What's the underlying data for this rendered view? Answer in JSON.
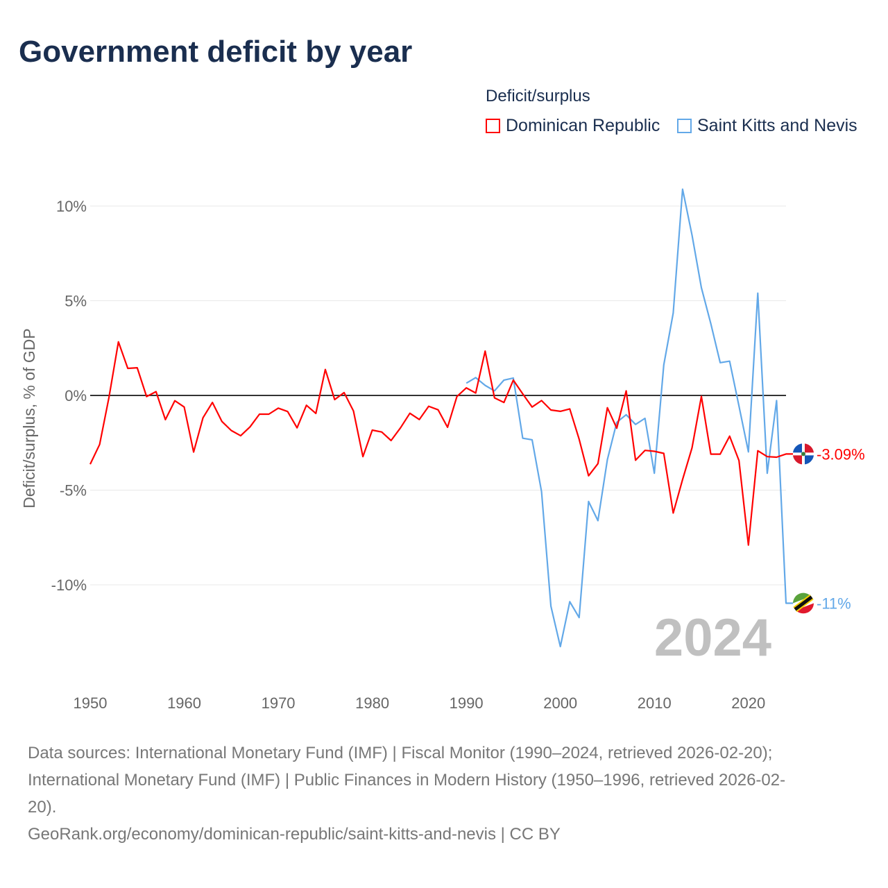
{
  "title": "Government deficit by year",
  "legend": {
    "title": "Deficit/surplus",
    "items": [
      {
        "label": "Dominican Republic",
        "color": "#ff0000"
      },
      {
        "label": "Saint Kitts and Nevis",
        "color": "#62a8e8"
      }
    ]
  },
  "footer": {
    "line1": "Data sources: International Monetary Fund (IMF) | Fiscal Monitor (1990–2024, retrieved 2026-02-20);",
    "line2": "International Monetary Fund (IMF) | Public Finances in Modern History (1950–1996, retrieved 2026-02-",
    "line3": "20).",
    "line4": "GeoRank.org/economy/dominican-republic/saint-kitts-and-nevis | CC BY"
  },
  "chart_data": {
    "type": "line",
    "title": "Government deficit by year",
    "ylabel": "Deficit/surplus, % of GDP",
    "xlabel": "",
    "xlim": [
      1950,
      2024
    ],
    "ylim": [
      -14.5,
      11.5
    ],
    "x_ticks": [
      1950,
      1960,
      1970,
      1980,
      1990,
      2000,
      2010,
      2020
    ],
    "y_ticks": [
      {
        "v": 10,
        "label": "10%"
      },
      {
        "v": 5,
        "label": "5%"
      },
      {
        "v": 0,
        "label": "0%"
      },
      {
        "v": -5,
        "label": "-5%"
      },
      {
        "v": -10,
        "label": "-10%"
      }
    ],
    "year_label": "2024",
    "legend_position": "top-right",
    "series": [
      {
        "name": "Dominican Republic",
        "color": "#ff0000",
        "end_label": "-3.09%",
        "start_year": 1950,
        "values": [
          -3.63,
          -2.59,
          -0.1,
          2.83,
          1.43,
          1.46,
          -0.06,
          0.2,
          -1.28,
          -0.28,
          -0.61,
          -2.99,
          -1.18,
          -0.37,
          -1.37,
          -1.85,
          -2.13,
          -1.66,
          -0.99,
          -0.99,
          -0.67,
          -0.85,
          -1.71,
          -0.52,
          -0.95,
          1.37,
          -0.22,
          0.15,
          -0.82,
          -3.23,
          -1.83,
          -1.93,
          -2.38,
          -1.71,
          -0.94,
          -1.27,
          -0.57,
          -0.76,
          -1.68,
          -0.06,
          0.4,
          0.13,
          2.34,
          -0.13,
          -0.37,
          0.81,
          0.08,
          -0.61,
          -0.27,
          -0.77,
          -0.84,
          -0.71,
          -2.31,
          -4.24,
          -3.6,
          -0.65,
          -1.73,
          0.24,
          -3.42,
          -2.9,
          -2.95,
          -3.06,
          -6.21,
          -4.44,
          -2.77,
          -0.05,
          -3.1,
          -3.1,
          -2.15,
          -3.44,
          -7.9,
          -2.92,
          -3.23,
          -3.26,
          -3.09
        ]
      },
      {
        "name": "Saint Kitts and Nevis",
        "color": "#62a8e8",
        "end_label": "-11%",
        "start_year": 1990,
        "values": [
          0.65,
          0.94,
          0.53,
          0.24,
          0.81,
          0.92,
          -2.26,
          -2.34,
          -5.08,
          -11.13,
          -13.26,
          -10.89,
          -11.73,
          -5.6,
          -6.61,
          -3.39,
          -1.42,
          -1.02,
          -1.53,
          -1.21,
          -4.11,
          1.61,
          4.35,
          10.89,
          8.47,
          5.69,
          3.79,
          1.73,
          1.81,
          -0.56,
          -2.98,
          5.4,
          -4.11,
          -0.27,
          -10.97
        ]
      }
    ]
  }
}
